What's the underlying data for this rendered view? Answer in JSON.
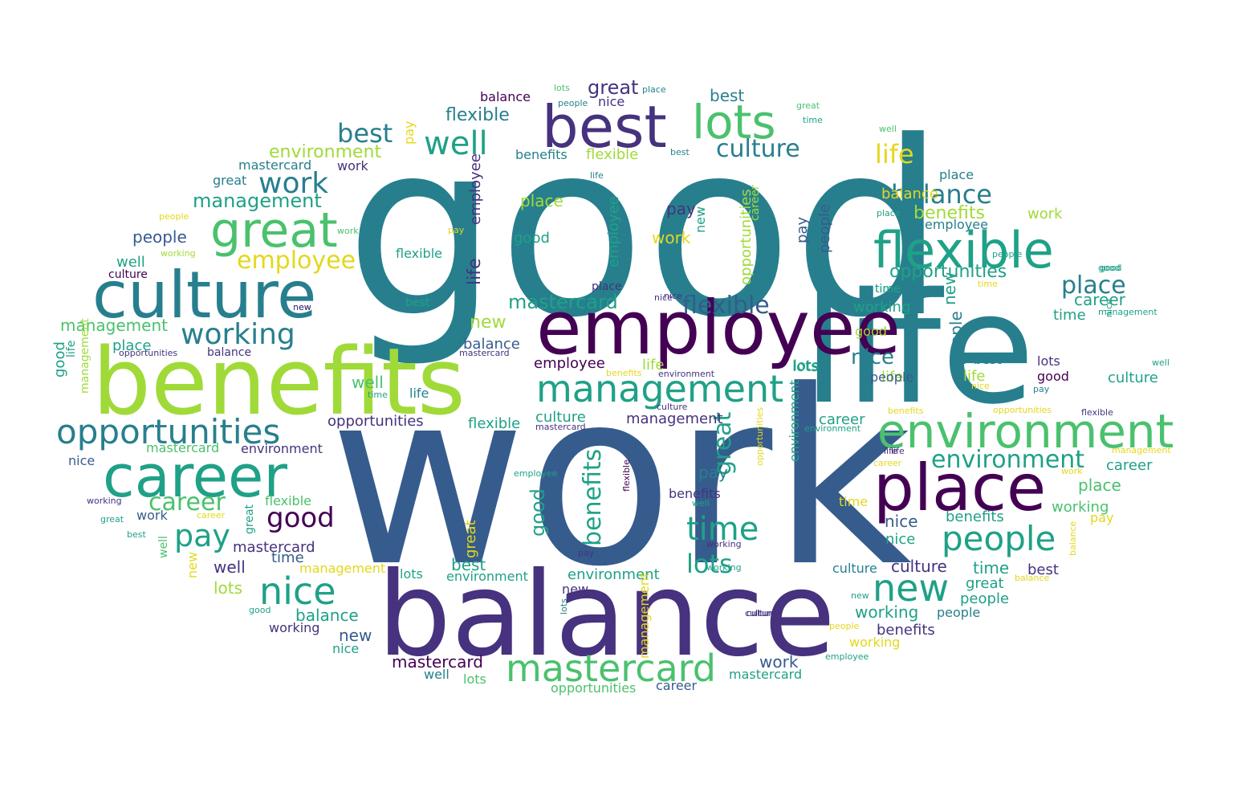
{
  "palette": {
    "dark_purple": "#440154",
    "indigo": "#46327e",
    "blue": "#365c8d",
    "teal_blue": "#277f8e",
    "teal": "#1fa187",
    "green": "#4ac16d",
    "light_green": "#a0da39",
    "yellow": "#e3d81c"
  },
  "words": [
    "good",
    "work",
    "life",
    "benefits",
    "balance",
    "employee",
    "culture",
    "best",
    "place",
    "career",
    "flexible",
    "environment",
    "great",
    "lots",
    "management",
    "opportunities",
    "mastercard",
    "nice",
    "new",
    "people",
    "working",
    "time",
    "pay",
    "well"
  ]
}
